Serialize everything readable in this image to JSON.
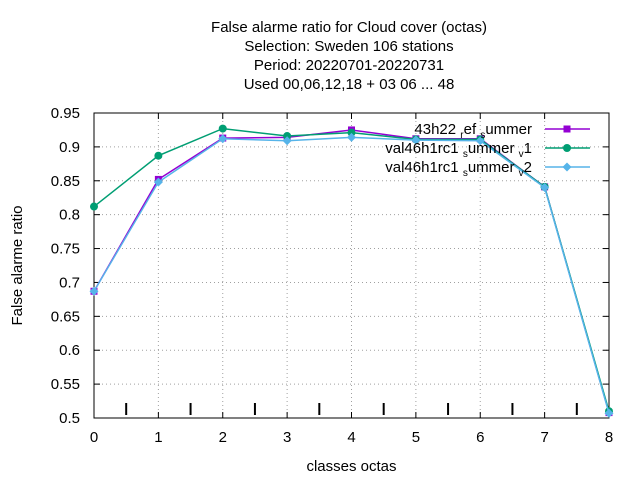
{
  "chart_data": {
    "type": "line",
    "title_lines": [
      "False alarme ratio  for Cloud cover (octas)",
      "Selection: Sweden     106 stations",
      "Period: 20220701-20220731",
      "Used  00,06,12,18  + 03 06 ... 48"
    ],
    "xlabel": "classes octas",
    "ylabel": "False alarme ratio",
    "xlim": [
      0,
      8
    ],
    "ylim": [
      0.5,
      0.95
    ],
    "x_ticks": [
      0,
      1,
      2,
      3,
      4,
      5,
      6,
      7,
      8
    ],
    "y_ticks": [
      0.5,
      0.55,
      0.6,
      0.65,
      0.7,
      0.75,
      0.8,
      0.85,
      0.9,
      0.95
    ],
    "y_tick_labels": [
      "0.5",
      "0.55",
      "0.6",
      "0.65",
      "0.7",
      "0.75",
      "0.8",
      "0.85",
      "0.9",
      "0.95"
    ],
    "grid": true,
    "legend_position": "top-right",
    "minor_marks_x": [
      0.5,
      1.5,
      2.5,
      3.5,
      4.5,
      5.5,
      6.5,
      7.5
    ],
    "series": [
      {
        "name": "43h22_ref_summer",
        "legend_parts": [
          [
            "43h22 ",
            ""
          ],
          [
            "r",
            "sub"
          ],
          [
            "ef ",
            ""
          ],
          [
            "s",
            "sub"
          ],
          [
            "ummer",
            ""
          ]
        ],
        "color": "#9400d3",
        "marker": "square",
        "x": [
          0,
          1,
          2,
          3,
          4,
          5,
          6,
          7,
          8
        ],
        "y": [
          0.687,
          0.852,
          0.913,
          0.914,
          0.925,
          0.912,
          0.912,
          0.841,
          0.508
        ]
      },
      {
        "name": "val46h1rc1_summer_v1",
        "legend_parts": [
          [
            "val46h1rc1 ",
            ""
          ],
          [
            "s",
            "sub"
          ],
          [
            "ummer ",
            ""
          ],
          [
            "v",
            "sub"
          ],
          [
            "1",
            ""
          ]
        ],
        "color": "#009e73",
        "marker": "circle",
        "x": [
          0,
          1,
          2,
          3,
          4,
          5,
          6,
          7,
          8
        ],
        "y": [
          0.812,
          0.887,
          0.927,
          0.916,
          0.921,
          0.911,
          0.911,
          0.841,
          0.51
        ]
      },
      {
        "name": "val46h1rc1_summer_v2",
        "legend_parts": [
          [
            "val46h1rc1 ",
            ""
          ],
          [
            "s",
            "sub"
          ],
          [
            "ummer ",
            ""
          ],
          [
            "v",
            "sub"
          ],
          [
            "2",
            ""
          ]
        ],
        "color": "#56b4e9",
        "marker": "diamond",
        "x": [
          0,
          1,
          2,
          3,
          4,
          5,
          6,
          7,
          8
        ],
        "y": [
          0.687,
          0.848,
          0.912,
          0.909,
          0.914,
          0.91,
          0.909,
          0.84,
          0.507
        ]
      }
    ]
  }
}
